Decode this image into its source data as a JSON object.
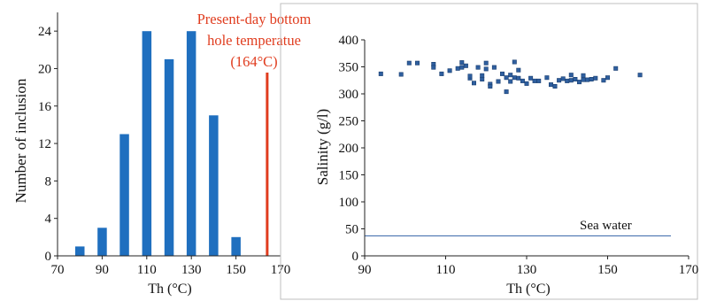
{
  "chart_data": [
    {
      "type": "bar",
      "xlabel": "Th (°C)",
      "ylabel": "Number of inclusion",
      "xlim": [
        70,
        170
      ],
      "ylim": [
        0,
        26
      ],
      "xticks": [
        "70",
        "90",
        "110",
        "130",
        "150",
        "170"
      ],
      "yticks": [
        "0",
        "4",
        "8",
        "12",
        "16",
        "20",
        "24"
      ],
      "x": [
        80,
        90,
        100,
        110,
        120,
        130,
        140,
        150
      ],
      "values": [
        1,
        3,
        13,
        24,
        21,
        24,
        15,
        2
      ],
      "bar_color": "#1f6fbf",
      "reference_line": {
        "x": 164,
        "color": "#e03c1e"
      },
      "annotation": [
        "Present-day bottom",
        "hole temperatue",
        "(164°C)"
      ],
      "annotation_color": "#e03c1e",
      "grid": false
    },
    {
      "type": "scatter",
      "xlabel": "Th (°C)",
      "ylabel": "Salinity (g/l)",
      "xlim": [
        90,
        170
      ],
      "ylim": [
        0,
        400
      ],
      "xticks": [
        "90",
        "110",
        "130",
        "150",
        "170"
      ],
      "yticks": [
        "0",
        "50",
        "100",
        "150",
        "200",
        "250",
        "300",
        "350",
        "400"
      ],
      "marker_color": "#2f5f9f",
      "points": [
        [
          94,
          337
        ],
        [
          99,
          336
        ],
        [
          101,
          357
        ],
        [
          103,
          357
        ],
        [
          107,
          355
        ],
        [
          107,
          349
        ],
        [
          109,
          337
        ],
        [
          111,
          343
        ],
        [
          113,
          347
        ],
        [
          114,
          358
        ],
        [
          114,
          349
        ],
        [
          115,
          352
        ],
        [
          116,
          329
        ],
        [
          116,
          333
        ],
        [
          117,
          320
        ],
        [
          118,
          349
        ],
        [
          119,
          334
        ],
        [
          119,
          327
        ],
        [
          120,
          357
        ],
        [
          120,
          346
        ],
        [
          121,
          318
        ],
        [
          121,
          314
        ],
        [
          122,
          349
        ],
        [
          123,
          323
        ],
        [
          124,
          337
        ],
        [
          125,
          304
        ],
        [
          125,
          330
        ],
        [
          126,
          323
        ],
        [
          126,
          335
        ],
        [
          127,
          359
        ],
        [
          127,
          330
        ],
        [
          128,
          329
        ],
        [
          128,
          344
        ],
        [
          129,
          324
        ],
        [
          130,
          319
        ],
        [
          131,
          329
        ],
        [
          132,
          324
        ],
        [
          133,
          324
        ],
        [
          135,
          330
        ],
        [
          136,
          317
        ],
        [
          137,
          314
        ],
        [
          138,
          325
        ],
        [
          139,
          328
        ],
        [
          140,
          324
        ],
        [
          141,
          325
        ],
        [
          141,
          335
        ],
        [
          142,
          327
        ],
        [
          143,
          322
        ],
        [
          144,
          326
        ],
        [
          144,
          334
        ],
        [
          145,
          326
        ],
        [
          146,
          327
        ],
        [
          147,
          329
        ],
        [
          149,
          325
        ],
        [
          150,
          330
        ],
        [
          152,
          347
        ],
        [
          158,
          335
        ]
      ],
      "reference_line": {
        "y": 37,
        "color": "#4a73b0"
      },
      "reference_label": "Sea water",
      "grid": false
    }
  ]
}
